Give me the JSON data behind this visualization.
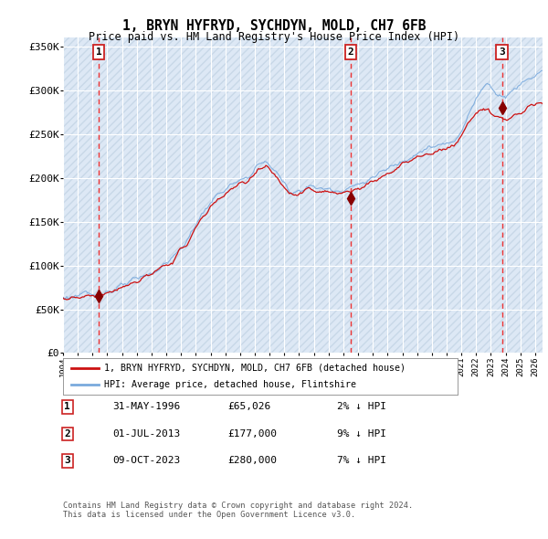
{
  "title1": "1, BRYN HYFRYD, SYCHDYN, MOLD, CH7 6FB",
  "title2": "Price paid vs. HM Land Registry's House Price Index (HPI)",
  "sale_labels": [
    "1",
    "2",
    "3"
  ],
  "sale_prices": [
    65026,
    177000,
    280000
  ],
  "sale_year_nums": [
    1996.417,
    2013.5,
    2023.75
  ],
  "legend_line1": "1, BRYN HYFRYD, SYCHDYN, MOLD, CH7 6FB (detached house)",
  "legend_line2": "HPI: Average price, detached house, Flintshire",
  "table_rows": [
    [
      "1",
      "31-MAY-1996",
      "£65,026",
      "2% ↓ HPI"
    ],
    [
      "2",
      "01-JUL-2013",
      "£177,000",
      "9% ↓ HPI"
    ],
    [
      "3",
      "09-OCT-2023",
      "£280,000",
      "7% ↓ HPI"
    ]
  ],
  "footnote1": "Contains HM Land Registry data © Crown copyright and database right 2024.",
  "footnote2": "This data is licensed under the Open Government Licence v3.0.",
  "hpi_line_color": "#7aaadd",
  "sale_line_color": "#cc1111",
  "sale_dot_color": "#880000",
  "vline_color": "#ee3333",
  "plot_bg_color": "#dde8f5",
  "hatch_color": "#c8d8e8",
  "ylim": [
    0,
    360000
  ],
  "xlim_start": 1994.0,
  "xlim_end": 2026.5,
  "xtick_start": 1994,
  "xtick_end": 2026
}
